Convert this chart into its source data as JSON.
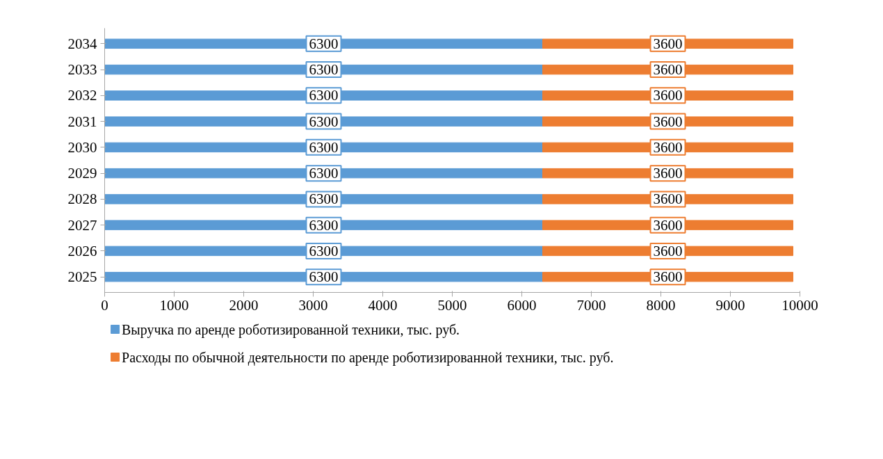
{
  "chart_data": {
    "type": "bar",
    "orientation": "horizontal",
    "stacked": true,
    "categories": [
      "2034",
      "2033",
      "2032",
      "2031",
      "2030",
      "2029",
      "2028",
      "2027",
      "2026",
      "2025"
    ],
    "series": [
      {
        "name": "Выручка по аренде роботизированной техники, тыс. руб.",
        "color": "#5b9bd5",
        "values": [
          6300,
          6300,
          6300,
          6300,
          6300,
          6300,
          6300,
          6300,
          6300,
          6300
        ]
      },
      {
        "name": "Расходы по обычной деятельности по аренде роботизированной техники, тыс. руб.",
        "color": "#ed7d31",
        "values": [
          3600,
          3600,
          3600,
          3600,
          3600,
          3600,
          3600,
          3600,
          3600,
          3600
        ]
      }
    ],
    "xlim": [
      0,
      10000
    ],
    "xticks": [
      0,
      1000,
      2000,
      3000,
      4000,
      5000,
      6000,
      7000,
      8000,
      9000,
      10000
    ],
    "data_labels": true,
    "grid": false,
    "legend": "bottom"
  }
}
